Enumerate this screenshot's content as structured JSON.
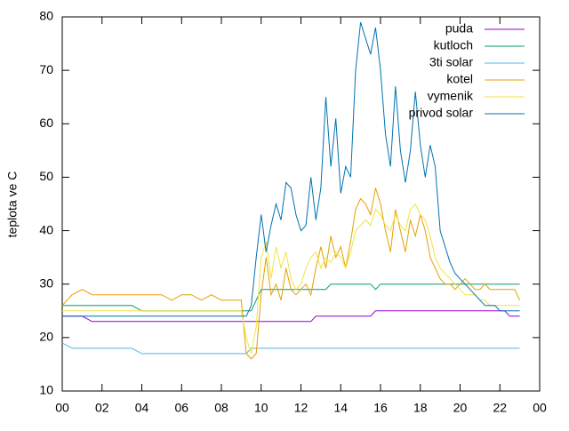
{
  "chart_data": {
    "type": "line",
    "ylabel": "teplota ve C",
    "x": [
      0,
      0.5,
      1,
      1.5,
      2,
      2.5,
      3,
      3.5,
      4,
      4.5,
      5,
      5.5,
      6,
      6.5,
      7,
      7.5,
      8,
      8.5,
      9,
      9.25,
      9.5,
      9.75,
      10,
      10.25,
      10.5,
      10.75,
      11,
      11.25,
      11.5,
      11.75,
      12,
      12.25,
      12.5,
      12.75,
      13,
      13.25,
      13.5,
      13.75,
      14,
      14.25,
      14.5,
      14.75,
      15,
      15.25,
      15.5,
      15.75,
      16,
      16.25,
      16.5,
      16.75,
      17,
      17.25,
      17.5,
      17.75,
      18,
      18.25,
      18.5,
      18.75,
      19,
      19.25,
      19.5,
      19.75,
      20,
      20.25,
      20.5,
      20.75,
      21,
      21.25,
      21.5,
      21.75,
      22,
      22.25,
      22.5,
      22.75,
      23
    ],
    "series": [
      {
        "name": "puda",
        "color": "#9400d3",
        "values": [
          24,
          24,
          24,
          23,
          23,
          23,
          23,
          23,
          23,
          23,
          23,
          23,
          23,
          23,
          23,
          23,
          23,
          23,
          23,
          23,
          23,
          23,
          23,
          23,
          23,
          23,
          23,
          23,
          23,
          23,
          23,
          23,
          23,
          24,
          24,
          24,
          24,
          24,
          24,
          24,
          24,
          24,
          24,
          24,
          24,
          25,
          25,
          25,
          25,
          25,
          25,
          25,
          25,
          25,
          25,
          25,
          25,
          25,
          25,
          25,
          25,
          25,
          25,
          25,
          25,
          25,
          25,
          25,
          25,
          25,
          25,
          25,
          24,
          24,
          24
        ]
      },
      {
        "name": "kutloch",
        "color": "#009e73",
        "values": [
          26,
          26,
          26,
          26,
          26,
          26,
          26,
          26,
          25,
          25,
          25,
          25,
          25,
          25,
          25,
          25,
          25,
          25,
          25,
          25,
          25,
          27,
          29,
          29,
          29,
          29,
          29,
          29,
          29,
          29,
          29,
          29,
          29,
          29,
          29,
          29,
          30,
          30,
          30,
          30,
          30,
          30,
          30,
          30,
          30,
          29,
          30,
          30,
          30,
          30,
          30,
          30,
          30,
          30,
          30,
          30,
          30,
          30,
          30,
          30,
          30,
          30,
          30,
          30,
          30,
          30,
          30,
          30,
          30,
          30,
          30,
          30,
          30,
          30,
          30
        ]
      },
      {
        "name": "3ti solar",
        "color": "#56b4e9",
        "values": [
          19,
          18,
          18,
          18,
          18,
          18,
          18,
          18,
          17,
          17,
          17,
          17,
          17,
          17,
          17,
          17,
          17,
          17,
          17,
          17,
          18,
          18,
          18,
          18,
          18,
          18,
          18,
          18,
          18,
          18,
          18,
          18,
          18,
          18,
          18,
          18,
          18,
          18,
          18,
          18,
          18,
          18,
          18,
          18,
          18,
          18,
          18,
          18,
          18,
          18,
          18,
          18,
          18,
          18,
          18,
          18,
          18,
          18,
          18,
          18,
          18,
          18,
          18,
          18,
          18,
          18,
          18,
          18,
          18,
          18,
          18,
          18,
          18,
          18,
          18
        ]
      },
      {
        "name": "kotel",
        "color": "#e69f00",
        "values": [
          26,
          28,
          29,
          28,
          28,
          28,
          28,
          28,
          28,
          28,
          28,
          27,
          28,
          28,
          27,
          28,
          27,
          27,
          27,
          17,
          16,
          17,
          28,
          35,
          28,
          30,
          27,
          33,
          29,
          28,
          29,
          30,
          28,
          33,
          37,
          33,
          39,
          35,
          37,
          33,
          38,
          44,
          46,
          45,
          43,
          48,
          45,
          40,
          36,
          44,
          40,
          36,
          42,
          39,
          43,
          40,
          35,
          33,
          31,
          30,
          30,
          29,
          30,
          31,
          30,
          29,
          29,
          30,
          29,
          29,
          29,
          29,
          29,
          29,
          27
        ]
      },
      {
        "name": "vymenik",
        "color": "#f0e442",
        "values": [
          25,
          25,
          25,
          25,
          25,
          25,
          25,
          25,
          25,
          25,
          25,
          25,
          25,
          25,
          25,
          25,
          25,
          25,
          25,
          20,
          17,
          22,
          35,
          38,
          31,
          37,
          33,
          36,
          31,
          29,
          30,
          33,
          35,
          36,
          33,
          35,
          34,
          36,
          35,
          33,
          36,
          40,
          41,
          42,
          41,
          44,
          43,
          41,
          40,
          43,
          41,
          40,
          44,
          45,
          43,
          42,
          39,
          35,
          33,
          32,
          31,
          30,
          29,
          28,
          28,
          28,
          27,
          27,
          26,
          26,
          26,
          26,
          26,
          26,
          26
        ]
      },
      {
        "name": "privod solar",
        "color": "#0072b2",
        "values": [
          24,
          24,
          24,
          24,
          24,
          24,
          24,
          24,
          24,
          24,
          24,
          24,
          24,
          24,
          24,
          24,
          24,
          24,
          24,
          24,
          26,
          35,
          43,
          36,
          41,
          45,
          42,
          49,
          48,
          43,
          40,
          41,
          50,
          42,
          48,
          65,
          52,
          61,
          47,
          52,
          50,
          70,
          79,
          76,
          73,
          78,
          70,
          58,
          52,
          67,
          55,
          49,
          55,
          66,
          56,
          50,
          56,
          52,
          40,
          37,
          34,
          32,
          31,
          30,
          29,
          28,
          27,
          26,
          26,
          26,
          25,
          25,
          25,
          25,
          25
        ]
      }
    ],
    "xlim": [
      0,
      24
    ],
    "xticks": [
      {
        "value": 0,
        "label": "00"
      },
      {
        "value": 2,
        "label": "02"
      },
      {
        "value": 4,
        "label": "04"
      },
      {
        "value": 6,
        "label": "06"
      },
      {
        "value": 8,
        "label": "08"
      },
      10,
      12,
      14,
      16,
      18,
      20,
      22,
      {
        "value": 24,
        "label": "00"
      }
    ],
    "ylim": [
      10,
      80
    ],
    "yticks": [
      10,
      20,
      30,
      40,
      50,
      60,
      70,
      80
    ],
    "grid": false,
    "legend": "top right"
  }
}
